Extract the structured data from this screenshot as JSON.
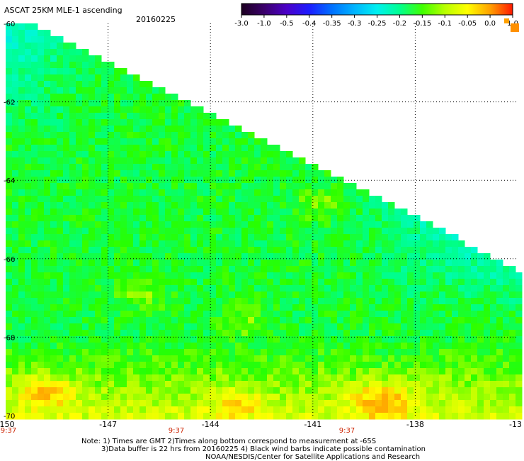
{
  "chart_data": {
    "type": "heatmap",
    "title": "ASCAT 25KM MLE-1 ascending",
    "date": "20160225",
    "xlim": [
      -150,
      -135
    ],
    "ylim": [
      -70,
      -60
    ],
    "x_ticks": [
      "-150",
      "-147",
      "-144",
      "-141",
      "-138",
      "-13"
    ],
    "y_ticks": [
      "-60",
      "-62",
      "-64",
      "-66",
      "-68",
      "-70"
    ],
    "time_labels": [
      {
        "lon": -150,
        "text": "9:37"
      },
      {
        "lon": -145,
        "text": "9:37"
      },
      {
        "lon": -140,
        "text": "9:37"
      }
    ],
    "colorbar": {
      "labels": [
        "-3.0",
        "-1.0",
        "-0.5",
        "-0.4",
        "-0.35",
        "-0.3",
        "-0.25",
        "-0.2",
        "-0.15",
        "-0.1",
        "-0.05",
        "0.0",
        "1.0"
      ],
      "colors": [
        "#1c0020",
        "#3a006a",
        "#4b00c8",
        "#1c1cff",
        "#0070ff",
        "#00b4ff",
        "#00f0f0",
        "#00ff90",
        "#40ff00",
        "#b8ff00",
        "#ffff00",
        "#ffa000",
        "#ff1800"
      ]
    },
    "grid": "dotted",
    "field_description": "MLE values mostly between -0.3 and -0.1; cyan (about -0.25) in the north-east, green (about -0.15) across the centre, yellow-orange (about -0.05 to 0.0) patches near -70; swath edge runs diagonally from top-left to right, white (no data) above it."
  },
  "notes": [
    "Note: 1) Times are GMT 2)Times along bottom correspond to measurement at -65S",
    "3)Data buffer is 22 hrs from 20160225 4) Black wind barbs indicate possible contamination",
    "NOAA/NESDIS/Center for Satellite Applications and Research"
  ]
}
